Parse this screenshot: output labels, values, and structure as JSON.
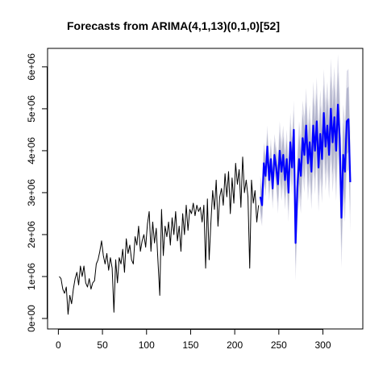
{
  "chart_data": {
    "type": "line",
    "title": "Forecasts from ARIMA(4,1,13)(0,1,0)[52]",
    "xlim": [
      -12.24,
      345.24
    ],
    "ylim": [
      -250000,
      6440000
    ],
    "xticks": [
      0,
      50,
      100,
      150,
      200,
      250,
      300
    ],
    "yticks": [
      {
        "value": 0,
        "label": "0e+00"
      },
      {
        "value": 1000000,
        "label": "1e+06"
      },
      {
        "value": 2000000,
        "label": "2e+06"
      },
      {
        "value": 3000000,
        "label": "3e+06"
      },
      {
        "value": 4000000,
        "label": "4e+06"
      },
      {
        "value": 5000000,
        "label": "5e+06"
      },
      {
        "value": 6000000,
        "label": "6e+06"
      }
    ],
    "series": [
      {
        "color": "#000000",
        "x": [
          1,
          3,
          5,
          7,
          9,
          11,
          13,
          15,
          17,
          19,
          21,
          23,
          25,
          27,
          29,
          31,
          33,
          35,
          37,
          39,
          41,
          43,
          45,
          47,
          49,
          51,
          53,
          55,
          57,
          59,
          61,
          63,
          65,
          67,
          69,
          71,
          73,
          75,
          77,
          79,
          81,
          83,
          85,
          87,
          89,
          91,
          93,
          95,
          97,
          99,
          101,
          103,
          105,
          107,
          109,
          111,
          113,
          115,
          117,
          119,
          121,
          123,
          125,
          127,
          129,
          131,
          133,
          135,
          137,
          139,
          141,
          143,
          145,
          147,
          149,
          151,
          153,
          155,
          157,
          159,
          161,
          163,
          165,
          167,
          169,
          171,
          173,
          175,
          177,
          179,
          181,
          183,
          185,
          187,
          189,
          191,
          193,
          195,
          197,
          199,
          201,
          203,
          205,
          207,
          209,
          211,
          213,
          215,
          217,
          219,
          221,
          223,
          225,
          227
        ],
        "values": [
          1000000.0,
          950000.0,
          700000.0,
          600000.0,
          750000.0,
          100000.0,
          550000.0,
          350000.0,
          700000.0,
          950000.0,
          1100000.0,
          800000.0,
          1250000.0,
          1000000.0,
          1250000.0,
          850000.0,
          750000.0,
          950000.0,
          700000.0,
          850000.0,
          900000.0,
          1300000.0,
          1400000.0,
          1600000.0,
          1850000.0,
          1500000.0,
          1300000.0,
          1550000.0,
          1150000.0,
          1450000.0,
          1200000.0,
          150000.0,
          1400000.0,
          850000.0,
          1450000.0,
          1300000.0,
          1650000.0,
          1100000.0,
          1900000.0,
          1550000.0,
          1750000.0,
          1400000.0,
          1300000.0,
          1950000.0,
          1750000.0,
          2200000.0,
          1600000.0,
          1850000.0,
          2000000.0,
          1700000.0,
          2250000.0,
          2550000.0,
          1600000.0,
          2300000.0,
          1800000.0,
          2150000.0,
          1350000.0,
          550000.0,
          2600000.0,
          1500000.0,
          2200000.0,
          1950000.0,
          2300000.0,
          1750000.0,
          2400000.0,
          2000000.0,
          2550000.0,
          1850000.0,
          2200000.0,
          1600000.0,
          2500000.0,
          2000000.0,
          2700000.0,
          2100000.0,
          2600000.0,
          2500000.0,
          2750000.0,
          2450000.0,
          2700000.0,
          2550000.0,
          2650000.0,
          2300000.0,
          2700000.0,
          1200000.0,
          2850000.0,
          1400000.0,
          2300000.0,
          3050000.0,
          2600000.0,
          3300000.0,
          2200000.0,
          2900000.0,
          3100000.0,
          2700000.0,
          3450000.0,
          2900000.0,
          3500000.0,
          2500000.0,
          3350000.0,
          2750000.0,
          3700000.0,
          3200000.0,
          3550000.0,
          2650000.0,
          3850000.0,
          3000000.0,
          3300000.0,
          2900000.0,
          1200000.0,
          3300000.0,
          2750000.0,
          3050000.0,
          2300000.0,
          2700000.0
        ]
      },
      {
        "color": "#0000ff",
        "x": [
          229,
          231,
          233,
          235,
          237,
          239,
          241,
          243,
          245,
          247,
          249,
          251,
          253,
          255,
          257,
          259,
          261,
          263,
          265,
          267,
          269,
          271,
          273,
          275,
          277,
          279,
          281,
          283,
          285,
          287,
          289,
          291,
          293,
          295,
          297,
          299,
          301,
          303,
          305,
          307,
          309,
          311,
          313,
          315,
          317,
          319,
          321,
          323,
          325,
          327,
          329,
          331
        ],
        "values": [
          2900000.0,
          2700000.0,
          3700000.0,
          3400000.0,
          4100000.0,
          3300000.0,
          3800000.0,
          3100000.0,
          3900000.0,
          3600000.0,
          3200000.0,
          4000000.0,
          3500000.0,
          3900000.0,
          3300000.0,
          3800000.0,
          3000000.0,
          4200000.0,
          3600000.0,
          4500000.0,
          1800000.0,
          3100000.0,
          3800000.0,
          3400000.0,
          4300000.0,
          3900000.0,
          4600000.0,
          3700000.0,
          4200000.0,
          3500000.0,
          4600000.0,
          4000000.0,
          4700000.0,
          3600000.0,
          4400000.0,
          3800000.0,
          4900000.0,
          4100000.0,
          4600000.0,
          3900000.0,
          5000000.0,
          4200000.0,
          4800000.0,
          4000000.0,
          5100000.0,
          4300000.0,
          2400000.0,
          3900000.0,
          3500000.0,
          4700000.0,
          4750000.0,
          3250000.0
        ],
        "bands": [
          {
            "color": "#dcdce8",
            "lower": [
              2400000.0,
              2200000.0,
              3200000.0,
              2900000.0,
              3600000.0,
              2800000.0,
              3300000.0,
              2600000.0,
              3400000.0,
              3100000.0,
              2500000.0,
              3300000.0,
              2800000.0,
              3200000.0,
              2600000.0,
              3100000.0,
              2300000.0,
              3500000.0,
              2900000.0,
              3800000.0,
              900000.0,
              2200000.0,
              2900000.0,
              2500000.0,
              3400000.0,
              3000000.0,
              3700000.0,
              2800000.0,
              3300000.0,
              2600000.0,
              3550000.0,
              2950000.0,
              3650000.0,
              2550000.0,
              3350000.0,
              2750000.0,
              3850000.0,
              3050000.0,
              3550000.0,
              2850000.0,
              3800000.0,
              3000000.0,
              3600000.0,
              2800000.0,
              3900000.0,
              3100000.0,
              1200000.0,
              2700000.0,
              2300000.0,
              3500000.0,
              3550000.0,
              2050000.0
            ],
            "upper": [
              3400000.0,
              3200000.0,
              4200000.0,
              3900000.0,
              4600000.0,
              3800000.0,
              4300000.0,
              3600000.0,
              4400000.0,
              4100000.0,
              3900000.0,
              4700000.0,
              4200000.0,
              4600000.0,
              4000000.0,
              4500000.0,
              3700000.0,
              4900000.0,
              4300000.0,
              5200000.0,
              2700000.0,
              4000000.0,
              4700000.0,
              4300000.0,
              5200000.0,
              4800000.0,
              5500000.0,
              4600000.0,
              5100000.0,
              4400000.0,
              5650000.0,
              5050000.0,
              5750000.0,
              4650000.0,
              5450000.0,
              4850000.0,
              5950000.0,
              5150000.0,
              5650000.0,
              4950000.0,
              6200000.0,
              5400000.0,
              6000000.0,
              5200000.0,
              6300000.0,
              5500000.0,
              3600000.0,
              5100000.0,
              4700000.0,
              5900000.0,
              5950000.0,
              4450000.0
            ]
          },
          {
            "color": "#b3b5cd",
            "lower": [
              2570000.0,
              2370000.0,
              3370000.0,
              3070000.0,
              3770000.0,
              2970000.0,
              3470000.0,
              2770000.0,
              3570000.0,
              3270000.0,
              2750000.0,
              3550000.0,
              3050000.0,
              3450000.0,
              2850000.0,
              3350000.0,
              2550000.0,
              3750000.0,
              3150000.0,
              4050000.0,
              1220000.0,
              2520000.0,
              3220000.0,
              2820000.0,
              3720000.0,
              3320000.0,
              4020000.0,
              3120000.0,
              3620000.0,
              2920000.0,
              3920000.0,
              3320000.0,
              4020000.0,
              2920000.0,
              3720000.0,
              3120000.0,
              4220000.0,
              3420000.0,
              3920000.0,
              3220000.0,
              4220000.0,
              3420000.0,
              4020000.0,
              3220000.0,
              4320000.0,
              3520000.0,
              1620000.0,
              3120000.0,
              2720000.0,
              3920000.0,
              3970000.0,
              2470000.0
            ],
            "upper": [
              3230000.0,
              3030000.0,
              4030000.0,
              3730000.0,
              4430000.0,
              3630000.0,
              4130000.0,
              3430000.0,
              4230000.0,
              3930000.0,
              3650000.0,
              4450000.0,
              3950000.0,
              4350000.0,
              3750000.0,
              4250000.0,
              3450000.0,
              4650000.0,
              4050000.0,
              4950000.0,
              2380000.0,
              3680000.0,
              4380000.0,
              3980000.0,
              4880000.0,
              4480000.0,
              5180000.0,
              4280000.0,
              4780000.0,
              4080000.0,
              5280000.0,
              4680000.0,
              5380000.0,
              4280000.0,
              5080000.0,
              4480000.0,
              5580000.0,
              4780000.0,
              5280000.0,
              4580000.0,
              5780000.0,
              4980000.0,
              5580000.0,
              4780000.0,
              5880000.0,
              5080000.0,
              3180000.0,
              4680000.0,
              4280000.0,
              5480000.0,
              5530000.0,
              4030000.0
            ]
          }
        ]
      }
    ]
  }
}
